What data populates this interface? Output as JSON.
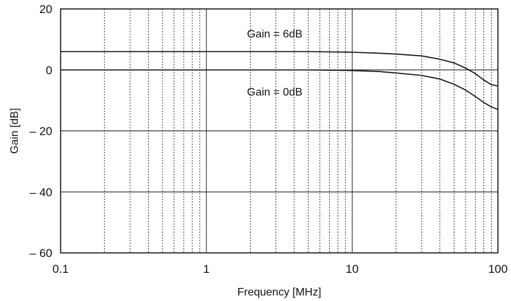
{
  "chart_data": {
    "type": "line",
    "xlabel": "Frequency [MHz]",
    "ylabel": "Gain [dB]",
    "x_scale": "log",
    "xlim": [
      0.1,
      100
    ],
    "ylim": [
      -60,
      20
    ],
    "x_ticks": [
      0.1,
      1,
      10,
      100
    ],
    "x_tick_labels": [
      "0.1",
      "1",
      "10",
      "100"
    ],
    "y_ticks": [
      20,
      0,
      -20,
      -40,
      -60
    ],
    "y_tick_labels": [
      "20",
      "0",
      "– 20",
      "– 40",
      "– 60"
    ],
    "grid": true,
    "legend": "none",
    "annotations": [
      {
        "text": "Gain = 6dB",
        "x": 1.9,
        "y": 12
      },
      {
        "text": "Gain = 0dB",
        "x": 1.9,
        "y": -7
      }
    ],
    "series": [
      {
        "x": [
          0.1,
          1,
          5,
          10,
          15,
          20,
          30,
          40,
          50,
          60,
          70,
          80,
          90,
          100
        ],
        "y": [
          6,
          6,
          6,
          5.8,
          5.5,
          5.2,
          4.6,
          3.5,
          2.3,
          0.6,
          -1.2,
          -3.3,
          -4.8,
          -5.3
        ]
      },
      {
        "x": [
          0.1,
          1,
          5,
          10,
          15,
          20,
          30,
          40,
          50,
          60,
          70,
          80,
          90,
          100
        ],
        "y": [
          0,
          0,
          0,
          -0.2,
          -0.5,
          -1.0,
          -1.8,
          -3.0,
          -4.7,
          -6.6,
          -8.7,
          -10.7,
          -12.1,
          -13
        ]
      }
    ],
    "colors": {
      "line": "#111111",
      "grid_major": "#111111",
      "grid_minor": "#111111",
      "frame": "#111111"
    }
  }
}
